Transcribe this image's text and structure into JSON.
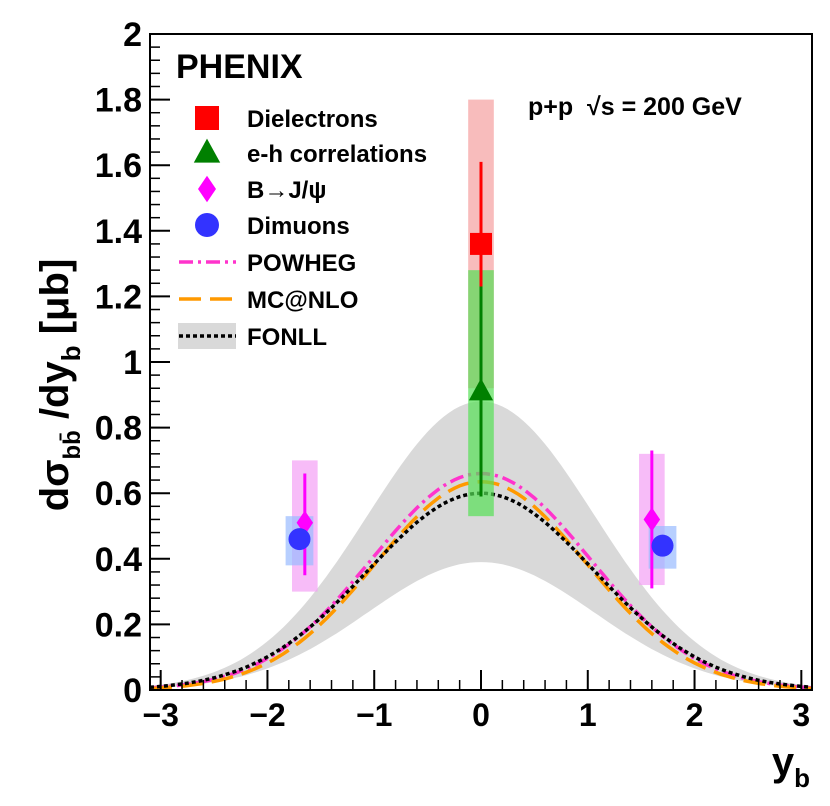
{
  "chart_data": {
    "type": "scatter",
    "experiment": "PHENIX",
    "condition": "p+p  √s = 200 GeV",
    "xlabel": "y_b",
    "ylabel": "dσ_bb̄ /dy_b [μb]",
    "xlim": [
      -3.1,
      3.1
    ],
    "ylim": [
      0,
      2
    ],
    "xticks": [
      -3,
      -2,
      -1,
      0,
      1,
      2,
      3
    ],
    "xtick_labels": [
      "−3",
      "−2",
      "−1",
      "0",
      "1",
      "2",
      "3"
    ],
    "yticks": [
      0,
      0.2,
      0.4,
      0.6,
      0.8,
      1,
      1.2,
      1.4,
      1.6,
      1.8,
      2
    ],
    "ytick_labels": [
      "0",
      "0.2",
      "0.4",
      "0.6",
      "0.8",
      "1",
      "1.2",
      "1.4",
      "1.6",
      "1.8",
      "2"
    ],
    "series": [
      {
        "name": "Dielectrons",
        "marker": "square",
        "color": "#ff0000",
        "box_color": "#f5a0a0",
        "points": [
          {
            "x": 0.0,
            "y": 1.36,
            "stat": [
              1.11,
              1.61
            ],
            "sys": [
              0.92,
              1.8
            ],
            "box_dx": 0.12
          }
        ]
      },
      {
        "name": "e-h correlations",
        "marker": "triangle",
        "color": "#008000",
        "box_color": "#55e055",
        "points": [
          {
            "x": 0.0,
            "y": 0.91,
            "stat": [
              0.59,
              1.23
            ],
            "sys": [
              0.53,
              1.28
            ],
            "box_dx": 0.12
          }
        ]
      },
      {
        "name": "B→J/ψ",
        "marker": "diamond",
        "color": "#ff00ff",
        "box_color": "#f3a0f5",
        "points": [
          {
            "x": -1.65,
            "y": 0.51,
            "stat": [
              0.35,
              0.66
            ],
            "sys": [
              0.3,
              0.7
            ],
            "box_dx": 0.12
          },
          {
            "x": 1.6,
            "y": 0.52,
            "stat": [
              0.31,
              0.73
            ],
            "sys": [
              0.32,
              0.72
            ],
            "box_dx": 0.12
          }
        ]
      },
      {
        "name": "Dimuons",
        "marker": "circle",
        "color": "#3333ff",
        "box_color": "#99bbff",
        "points": [
          {
            "x": -1.7,
            "y": 0.46,
            "stat": [
              0.43,
              0.49
            ],
            "sys": [
              0.38,
              0.53
            ],
            "box_dx": 0.13
          },
          {
            "x": 1.7,
            "y": 0.44,
            "stat": [
              0.41,
              0.47
            ],
            "sys": [
              0.37,
              0.5
            ],
            "box_dx": 0.13
          }
        ]
      }
    ],
    "curves": [
      {
        "name": "POWHEG",
        "style": "dashdot",
        "color": "#ff33cc",
        "peak": 0.66,
        "sigma": 1.02
      },
      {
        "name": "MC@NLO",
        "style": "longdash",
        "color": "#ff9900",
        "peak": 0.635,
        "sigma": 0.99
      },
      {
        "name": "FONLL",
        "style": "dotted",
        "color": "#000000",
        "peak": 0.6,
        "sigma": 1.06,
        "band_color": "#d9d9d9",
        "band_upper_peak": 0.88,
        "band_lower_peak": 0.39
      }
    ],
    "legend": [
      "Dielectrons",
      "e-h correlations",
      "B→J/ψ",
      "Dimuons",
      "POWHEG",
      "MC@NLO",
      "FONLL"
    ],
    "legend_position": "top-left"
  }
}
